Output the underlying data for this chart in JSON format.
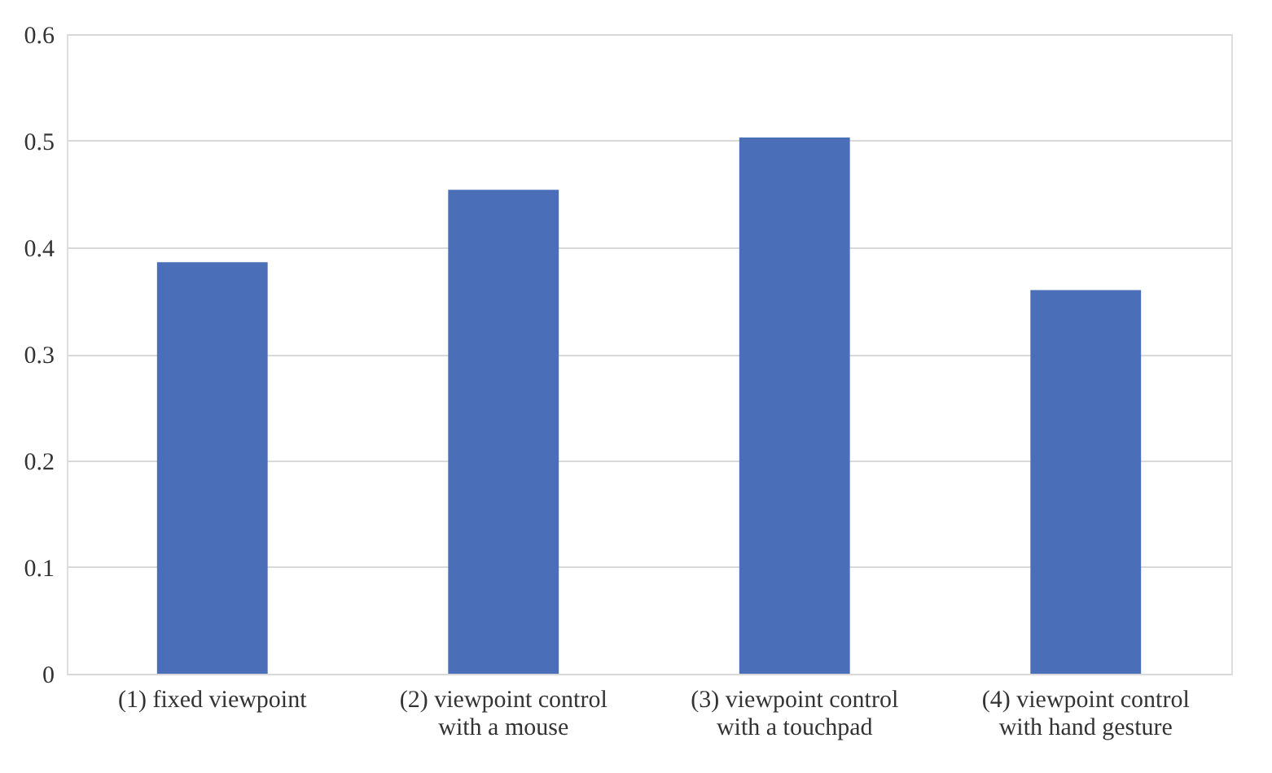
{
  "chart_data": {
    "type": "bar",
    "categories": [
      "(1) fixed viewpoint",
      "(2) viewpoint control\nwith a mouse",
      "(3) viewpoint control\nwith a touchpad",
      "(4) viewpoint control\nwith hand gesture"
    ],
    "values": [
      0.386,
      0.454,
      0.503,
      0.36
    ],
    "color": "#4a6fb8",
    "ylim": [
      0,
      0.6
    ],
    "yticks": [
      {
        "value": 0,
        "label": "0"
      },
      0.1,
      0.2,
      0.3,
      0.4,
      0.5,
      0.6
    ],
    "grid": "y"
  }
}
